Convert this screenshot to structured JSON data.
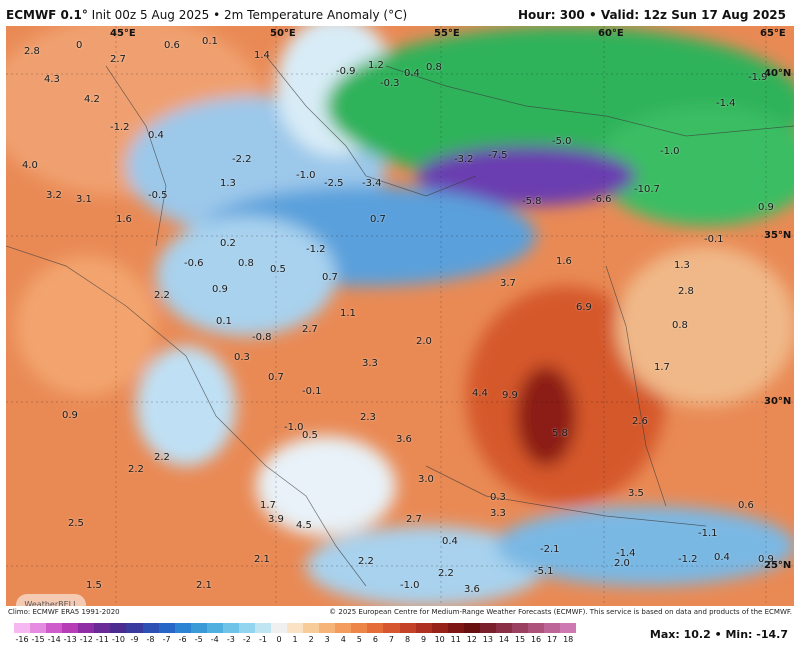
{
  "header": {
    "model": "ECMWF 0.1°",
    "init": "Init 00z 5 Aug 2025",
    "variable": "2m Temperature Anomaly (°C)",
    "hour_label": "Hour:",
    "hour": "300",
    "valid_label": "Valid:",
    "valid": "12z Sun 17 Aug 2025"
  },
  "coords": {
    "45e": "45°E",
    "50e": "50°E",
    "55e": "55°E",
    "60e": "60°E",
    "65e": "65°E",
    "40n": "40°N",
    "35n": "35°N",
    "30n": "30°N",
    "25n": "25°N"
  },
  "labels": [
    "4.3",
    "2.8",
    "0",
    "0.6",
    "0.1",
    "1.4",
    "2.7",
    "4.2",
    "-0.9",
    "0.4",
    "1.2",
    "0.8",
    "-0.3",
    "-1.9",
    "-1.4",
    "-1.0",
    "4.0",
    "3.2",
    "3.1",
    "-0.5",
    "1.6",
    "-1.2",
    "0.4",
    "2.2",
    "0.2",
    "0.9",
    "0.8",
    "-0.6",
    "0.1",
    "-0.8",
    "0.5",
    "-1.2",
    "-2.2",
    "1.3",
    "-1.0",
    "-2.5",
    "-3.4",
    "-3.2",
    "-7.5",
    "-5.0",
    "-6.6",
    "-10.7",
    "0.9",
    "-0.1",
    "-5.8",
    "0.7",
    "0.7",
    "1.1",
    "3.7",
    "1.6",
    "1.3",
    "2.8",
    "6.9",
    "0.8",
    "2.7",
    "2.0",
    "1.7",
    "3.3",
    "0.3",
    "0.7",
    "-0.1",
    "4.4",
    "9.9",
    "5.8",
    "2.3",
    "3.6",
    "2.6",
    "0.9",
    "-1.0",
    "0.5",
    "3.0",
    "2.2",
    "2.2",
    "0.3",
    "1.7",
    "3.5",
    "2.5",
    "3.9",
    "4.5",
    "2.7",
    "0.4",
    "0.6",
    "-1.1",
    "-1.4",
    "-1.2",
    "0.4",
    "0.9",
    "2.1",
    "2.1",
    "1.5",
    "3.6",
    "2.2",
    "2.2",
    "-2.1",
    "3.3",
    "-5.1",
    "2.0",
    "-1.0"
  ],
  "credits": {
    "climo": "Climo: ECMWF ERA5 1991-2020",
    "copyright": "© 2025 European Centre for Medium-Range Weather Forecasts (ECMWF). This service is based on data and products of the ECMWF."
  },
  "logo": "WeatherBELL",
  "scale": {
    "ticks": [
      "-16",
      "-15",
      "-14",
      "-13",
      "-12",
      "-11",
      "-10",
      "-9",
      "-8",
      "-7",
      "-6",
      "-5",
      "-4",
      "-3",
      "-2",
      "-1",
      "0",
      "1",
      "2",
      "3",
      "4",
      "5",
      "6",
      "7",
      "8",
      "9",
      "10",
      "11",
      "12",
      "13",
      "14",
      "15",
      "16",
      "17",
      "18"
    ],
    "colors": [
      "#f5b8f0",
      "#e58be0",
      "#cf5ccb",
      "#b63db5",
      "#8f2ea4",
      "#6a2a98",
      "#4b2b8f",
      "#3a3b9f",
      "#2d50b5",
      "#2766c7",
      "#2d83d3",
      "#3a9ad8",
      "#4fb0e0",
      "#6ec4e8",
      "#93d5ee",
      "#bfe5f3",
      "#f0f0f0",
      "#fbe2c4",
      "#f8cc98",
      "#f6b478",
      "#f39c5e",
      "#ee8548",
      "#e46d39",
      "#d6562f",
      "#c44227",
      "#ae3020",
      "#962219",
      "#7e1713",
      "#6a0f0f",
      "#7a1f2c",
      "#8b2f46",
      "#9b4060",
      "#ac527b",
      "#bd6596",
      "#ce79b1"
    ],
    "max_label": "Max:",
    "max": "10.2",
    "min_label": "Min:",
    "min": "-14.7"
  }
}
